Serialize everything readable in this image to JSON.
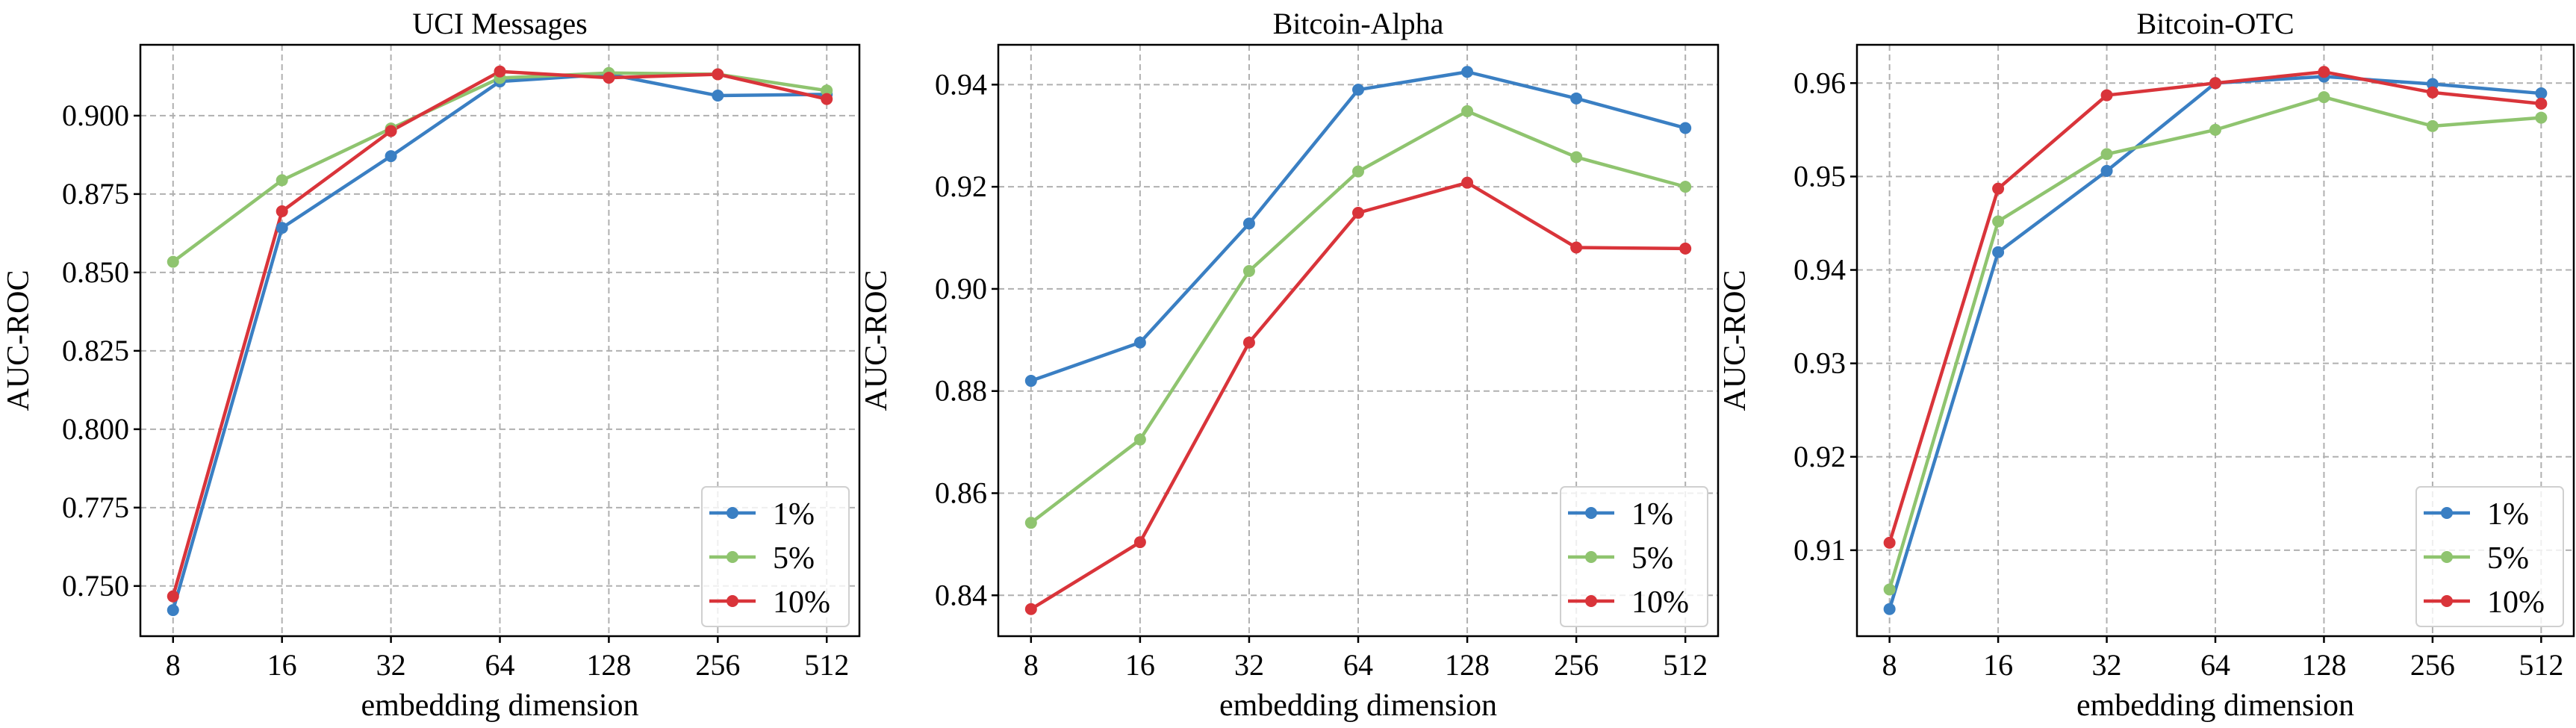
{
  "chart_data": [
    {
      "type": "line",
      "title": "UCI Messages",
      "xlabel": "embedding dimension",
      "ylabel": "AUC-ROC",
      "categories": [
        "8",
        "16",
        "32",
        "64",
        "128",
        "256",
        "512"
      ],
      "ylim": [
        0.734,
        0.9226
      ],
      "yticks": [
        "0.750",
        "0.775",
        "0.800",
        "0.825",
        "0.850",
        "0.875",
        "0.900"
      ],
      "grid": true,
      "legend": "bottom-right",
      "series": [
        {
          "name": "1%",
          "color": "#3a7fc3",
          "values": [
            0.7423,
            0.8642,
            0.8871,
            0.9109,
            0.9132,
            0.9064,
            0.9068
          ]
        },
        {
          "name": "5%",
          "color": "#8fc46f",
          "values": [
            0.8534,
            0.8794,
            0.8959,
            0.912,
            0.9136,
            0.9132,
            0.908
          ]
        },
        {
          "name": "10%",
          "color": "#d9343a",
          "values": [
            0.7467,
            0.8695,
            0.8951,
            0.9141,
            0.9121,
            0.9132,
            0.9053
          ]
        }
      ]
    },
    {
      "type": "line",
      "title": "Bitcoin-Alpha",
      "xlabel": "embedding dimension",
      "ylabel": "AUC-ROC",
      "categories": [
        "8",
        "16",
        "32",
        "64",
        "128",
        "256",
        "512"
      ],
      "ylim": [
        0.832,
        0.9478
      ],
      "yticks": [
        "0.84",
        "0.86",
        "0.88",
        "0.90",
        "0.92",
        "0.94"
      ],
      "grid": true,
      "legend": "bottom-right",
      "series": [
        {
          "name": "1%",
          "color": "#3a7fc3",
          "values": [
            0.882,
            0.8895,
            0.9128,
            0.939,
            0.9425,
            0.9373,
            0.9315
          ]
        },
        {
          "name": "5%",
          "color": "#8fc46f",
          "values": [
            0.8542,
            0.8705,
            0.9035,
            0.923,
            0.9348,
            0.9258,
            0.92
          ]
        },
        {
          "name": "10%",
          "color": "#d9343a",
          "values": [
            0.8373,
            0.8504,
            0.8895,
            0.9149,
            0.9208,
            0.9081,
            0.9079
          ]
        }
      ]
    },
    {
      "type": "line",
      "title": "Bitcoin-OTC",
      "xlabel": "embedding dimension",
      "ylabel": "AUC-ROC",
      "categories": [
        "8",
        "16",
        "32",
        "64",
        "128",
        "256",
        "512"
      ],
      "ylim": [
        0.9008,
        0.9641
      ],
      "yticks": [
        "0.91",
        "0.92",
        "0.93",
        "0.94",
        "0.95",
        "0.96"
      ],
      "grid": true,
      "legend": "bottom-right",
      "series": [
        {
          "name": "1%",
          "color": "#3a7fc3",
          "values": [
            0.9037,
            0.9419,
            0.9506,
            0.96,
            0.9607,
            0.9599,
            0.9589
          ]
        },
        {
          "name": "5%",
          "color": "#8fc46f",
          "values": [
            0.9058,
            0.9452,
            0.9524,
            0.955,
            0.9585,
            0.9554,
            0.9563
          ]
        },
        {
          "name": "10%",
          "color": "#d9343a",
          "values": [
            0.9108,
            0.9487,
            0.9587,
            0.96,
            0.9612,
            0.959,
            0.9578
          ]
        }
      ]
    }
  ]
}
